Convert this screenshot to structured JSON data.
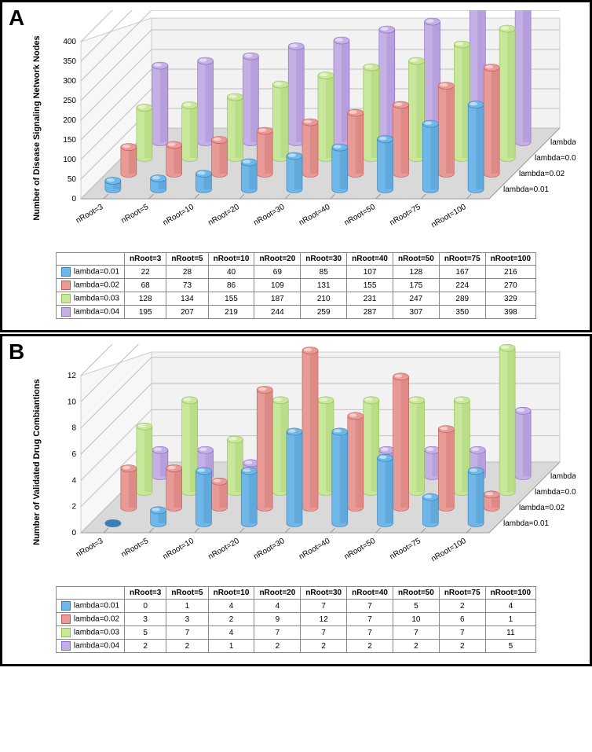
{
  "categories": [
    "nRoot=3",
    "nRoot=5",
    "nRoot=10",
    "nRoot=20",
    "nRoot=30",
    "nRoot=40",
    "nRoot=50",
    "nRoot=75",
    "nRoot=100"
  ],
  "series_keys": [
    "lambda=0.01",
    "lambda=0.02",
    "lambda=0.03",
    "lambda=0.04"
  ],
  "colors": {
    "lambda=0.01": {
      "light": "#6fb7e8",
      "dark": "#3a7fb5"
    },
    "lambda=0.02": {
      "light": "#e89a97",
      "dark": "#c05a56"
    },
    "lambda=0.03": {
      "light": "#c9e79a",
      "dark": "#8fbf54"
    },
    "lambda=0.04": {
      "light": "#c4b0e4",
      "dark": "#8a6bc2"
    }
  },
  "floor_color": "#d9d9d9",
  "grid_color": "#bfbfbf",
  "panelA": {
    "label": "A",
    "ylabel": "Number of Disease Signaling Network Nodes",
    "ylim": [
      0,
      400
    ],
    "ytick_step": 50,
    "data": {
      "lambda=0.01": [
        22,
        28,
        40,
        69,
        85,
        107,
        128,
        167,
        216
      ],
      "lambda=0.02": [
        68,
        73,
        86,
        109,
        131,
        155,
        175,
        224,
        270
      ],
      "lambda=0.03": [
        128,
        134,
        155,
        187,
        210,
        231,
        247,
        289,
        329
      ],
      "lambda=0.04": [
        195,
        207,
        219,
        244,
        259,
        287,
        307,
        350,
        398
      ]
    }
  },
  "panelB": {
    "label": "B",
    "ylabel": "Number of Validated Drug Combiantions",
    "ylim": [
      0,
      12
    ],
    "ytick_step": 2,
    "data": {
      "lambda=0.01": [
        0,
        1,
        4,
        4,
        7,
        7,
        5,
        2,
        4
      ],
      "lambda=0.02": [
        3,
        3,
        2,
        9,
        12,
        7,
        10,
        6,
        1
      ],
      "lambda=0.03": [
        5,
        7,
        4,
        7,
        7,
        7,
        7,
        7,
        11
      ],
      "lambda=0.04": [
        2,
        2,
        1,
        2,
        2,
        2,
        2,
        2,
        5
      ]
    }
  }
}
